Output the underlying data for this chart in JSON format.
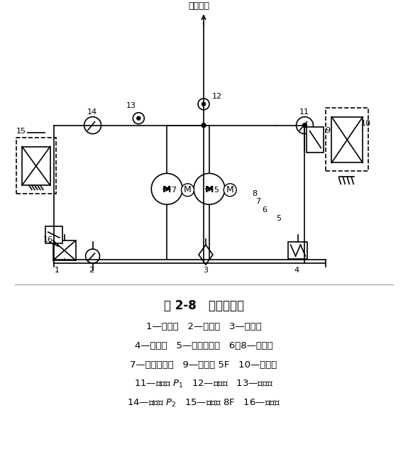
{
  "title": "图 2-8   液压原理图",
  "legend_lines": [
    "1—冷却器   2—油温仪   3—过滤器",
    "4—加热器   5—高压液压泵   6、8—电动机",
    "7—低压液压泵   9—电磁阀 5F   10—溢流阀",
    "11—压力表 $P_1$   12—单向阀   13—单向阀",
    "14—压力表 $P_2$   15—电磁阀 8F   16—溢流阀"
  ],
  "top_label": "工作系统",
  "bg_color": "#ffffff",
  "fg_color": "#000000",
  "line_width": 1.2
}
